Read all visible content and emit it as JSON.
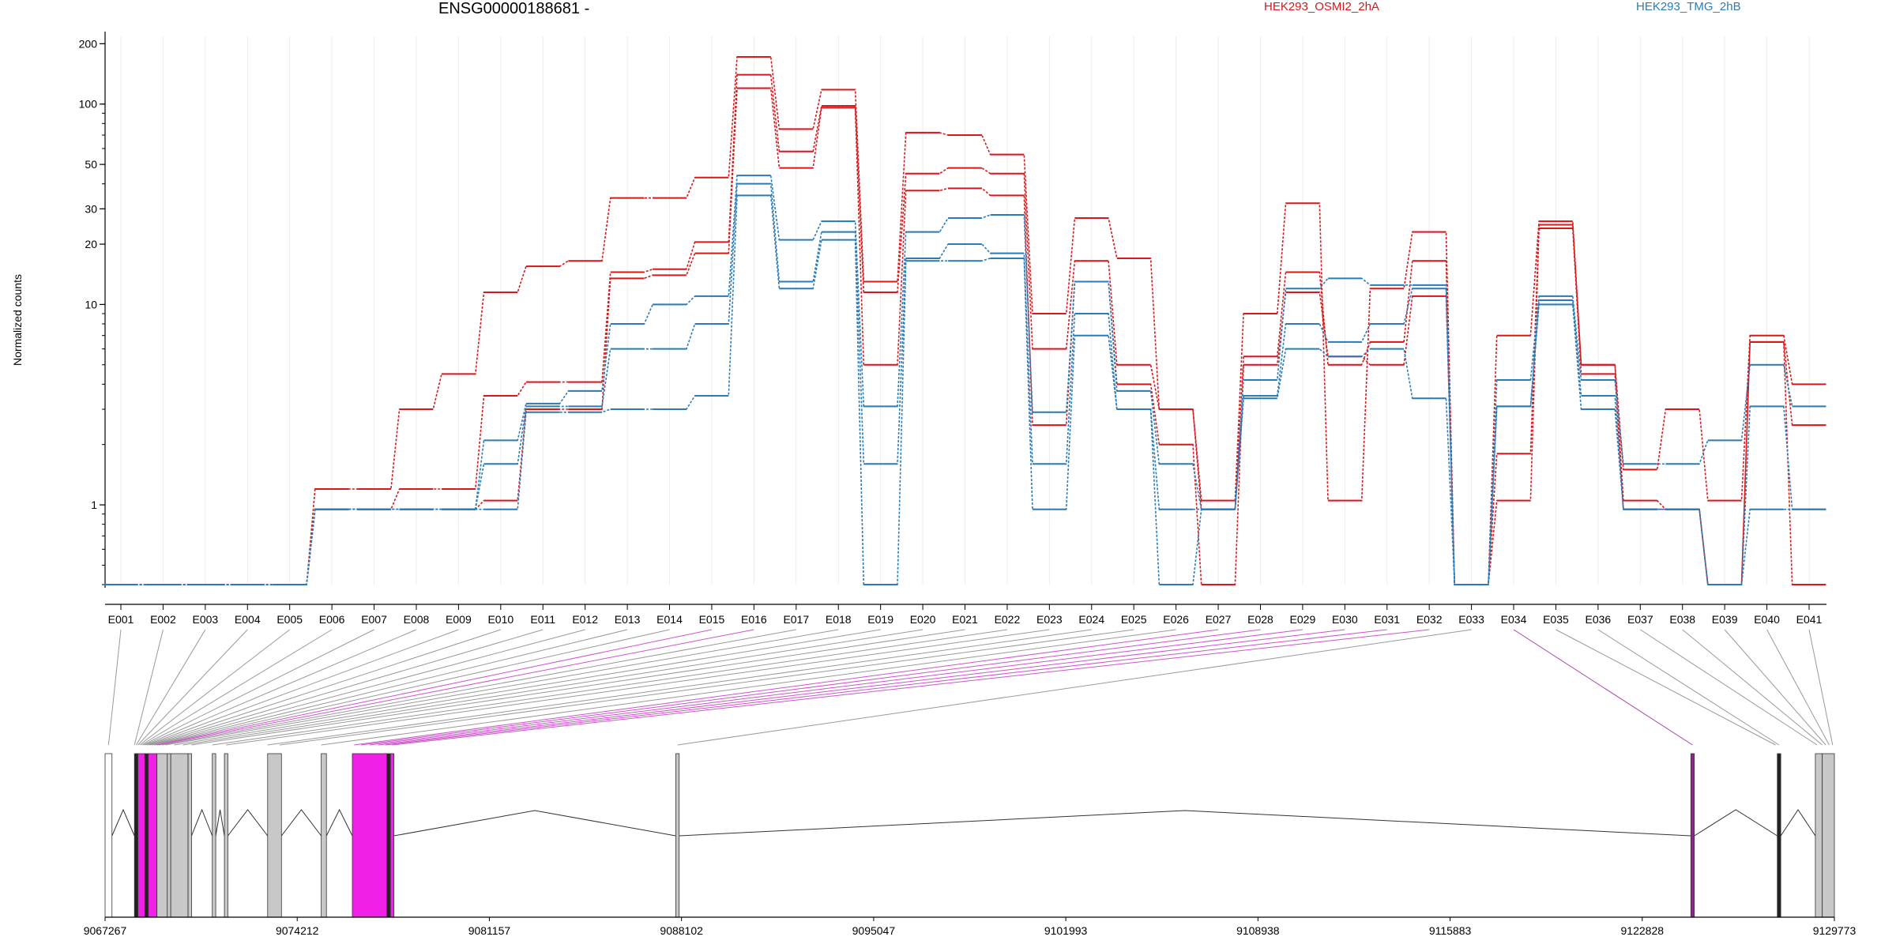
{
  "title": "ENSG00000188681 -",
  "legend": [
    {
      "name": "HEK293_OSMI2_2hA",
      "color": "#d7191c"
    },
    {
      "name": "HEK293_TMG_2hB",
      "color": "#2c7bb6"
    }
  ],
  "chart_data": {
    "type": "line",
    "ylabel": "Normalized counts",
    "yscale": "log",
    "yticks": [
      1,
      10,
      20,
      30,
      50,
      100,
      200
    ],
    "ylim": [
      0.4,
      210
    ],
    "categories": [
      "E001",
      "E002",
      "E003",
      "E004",
      "E005",
      "E006",
      "E007",
      "E008",
      "E009",
      "E010",
      "E011",
      "E012",
      "E013",
      "E014",
      "E015",
      "E016",
      "E017",
      "E018",
      "E019",
      "E020",
      "E021",
      "E022",
      "E023",
      "E024",
      "E025",
      "E026",
      "E027",
      "E028",
      "E029",
      "E030",
      "E031",
      "E032",
      "E033",
      "E034",
      "E035",
      "E036",
      "E037",
      "E038",
      "E039",
      "E040",
      "E041"
    ],
    "series": [
      {
        "group": "red",
        "values": [
          0.4,
          0.4,
          0.4,
          0.4,
          0.4,
          1.2,
          1.2,
          3.0,
          4.5,
          11.5,
          15.5,
          16.5,
          34,
          34,
          43,
          172,
          75,
          118,
          13,
          72,
          70,
          56,
          9,
          27,
          17,
          3,
          1.05,
          9,
          32,
          1.05,
          12,
          23,
          0.4,
          7,
          26,
          5,
          1.5,
          3,
          1.05,
          7,
          4
        ]
      },
      {
        "group": "red",
        "values": [
          0.4,
          0.4,
          0.4,
          0.4,
          0.4,
          0.95,
          0.95,
          1.2,
          1.2,
          3.5,
          4.1,
          4.1,
          14.5,
          15,
          20.5,
          140,
          58,
          98,
          11.5,
          45,
          48,
          45,
          6,
          16.5,
          5,
          3,
          0.95,
          5.5,
          14.5,
          5,
          6.5,
          16.5,
          0.4,
          1.8,
          25,
          5,
          1.05,
          0.95,
          0.4,
          6.5,
          2.5
        ]
      },
      {
        "group": "red",
        "values": [
          0.4,
          0.4,
          0.4,
          0.4,
          0.4,
          0.95,
          0.95,
          0.95,
          0.95,
          1.05,
          3.0,
          3.0,
          13.5,
          14,
          18,
          120,
          48,
          96,
          5,
          37,
          38,
          35,
          2.5,
          13,
          4,
          2,
          0.4,
          5,
          11.5,
          5.5,
          5,
          11,
          0.4,
          1.05,
          24,
          4.5,
          0.95,
          0.95,
          0.4,
          6.5,
          0.4
        ]
      },
      {
        "group": "blue",
        "values": [
          0.4,
          0.4,
          0.4,
          0.4,
          0.4,
          0.95,
          0.95,
          0.95,
          0.95,
          2.1,
          3.2,
          3.7,
          8,
          10,
          11,
          44,
          21,
          26,
          3.1,
          23,
          27,
          28,
          2.9,
          13,
          3.7,
          1.6,
          0.95,
          4.2,
          12,
          13.5,
          12.5,
          12.5,
          0.4,
          4.2,
          11,
          4.2,
          1.6,
          1.6,
          2.1,
          5,
          3.1
        ]
      },
      {
        "group": "blue",
        "values": [
          0.4,
          0.4,
          0.4,
          0.4,
          0.4,
          0.95,
          0.95,
          0.95,
          0.95,
          1.6,
          3.1,
          3.1,
          6,
          6,
          8,
          40,
          13,
          23,
          1.6,
          17,
          20,
          18,
          1.6,
          9,
          3,
          0.95,
          0.95,
          3.5,
          8,
          6.5,
          8,
          12,
          0.4,
          3.1,
          10.5,
          3.5,
          0.95,
          0.95,
          0.4,
          0.95,
          0.95
        ]
      },
      {
        "group": "blue",
        "values": [
          0.4,
          0.4,
          0.4,
          0.4,
          0.4,
          0.95,
          0.95,
          0.95,
          0.95,
          0.95,
          2.9,
          2.9,
          3.0,
          3.0,
          3.5,
          35,
          12,
          21,
          0.4,
          16.5,
          16.5,
          17,
          0.95,
          7,
          3.0,
          0.4,
          0.95,
          3.4,
          6,
          5.5,
          6,
          3.4,
          0.4,
          3.1,
          10,
          3.0,
          0.95,
          0.95,
          0.4,
          3.1,
          0.95
        ]
      }
    ],
    "gene_track": {
      "x_ticks": [
        "9067267",
        "9074212",
        "9081157",
        "9088102",
        "9095047",
        "9101993",
        "9108938",
        "9115883",
        "9122828",
        "9129773"
      ],
      "exon_bins": [
        {
          "start": 0.0,
          "end": 0.004,
          "color": "white",
          "exon": "E001"
        },
        {
          "start": 0.017,
          "end": 0.019,
          "color": "#222222",
          "exon": "E002"
        },
        {
          "start": 0.019,
          "end": 0.023,
          "color": "#f020e6",
          "exon": "E003"
        },
        {
          "start": 0.023,
          "end": 0.025,
          "color": "#222222",
          "exon": "E004"
        },
        {
          "start": 0.025,
          "end": 0.03,
          "color": "#f020e6",
          "exon": "E005"
        },
        {
          "start": 0.03,
          "end": 0.036,
          "color": "#c8c8c8",
          "exon": "E006"
        },
        {
          "start": 0.036,
          "end": 0.038,
          "color": "#c8c8c8",
          "exon": "E007"
        },
        {
          "start": 0.038,
          "end": 0.048,
          "color": "#c8c8c8",
          "exon": "E008"
        },
        {
          "start": 0.048,
          "end": 0.05,
          "color": "#c8c8c8",
          "exon": "E009"
        },
        {
          "start": 0.062,
          "end": 0.064,
          "color": "#c8c8c8",
          "exon": "E010"
        },
        {
          "start": 0.069,
          "end": 0.071,
          "color": "#c8c8c8",
          "exon": "E011"
        },
        {
          "start": 0.094,
          "end": 0.102,
          "color": "#c8c8c8",
          "exon": "E012"
        },
        {
          "start": 0.125,
          "end": 0.128,
          "color": "#c8c8c8",
          "exon": "E013"
        },
        {
          "start": 0.143,
          "end": 0.163,
          "color": "#f020e6",
          "exon": "E014"
        },
        {
          "start": 0.163,
          "end": 0.165,
          "color": "#222222",
          "exon": "E015"
        },
        {
          "start": 0.165,
          "end": 0.167,
          "color": "#f020e6",
          "exon": "E016"
        },
        {
          "start": 0.33,
          "end": 0.332,
          "color": "#c8c8c8",
          "exon": "E017"
        },
        {
          "start": 0.917,
          "end": 0.919,
          "color": "#9a1c9a",
          "exon": "E018"
        },
        {
          "start": 0.967,
          "end": 0.969,
          "color": "#222222",
          "exon": "E019"
        },
        {
          "start": 0.989,
          "end": 0.993,
          "color": "#c8c8c8",
          "exon": "E020"
        },
        {
          "start": 0.993,
          "end": 1.0,
          "color": "#c8c8c8",
          "exon": "E021"
        }
      ],
      "connectors": [
        {
          "exon": "E001",
          "pos": 0.002,
          "color": "#999999"
        },
        {
          "exon": "E002",
          "pos": 0.017,
          "color": "#999999"
        },
        {
          "exon": "E003",
          "pos": 0.018,
          "color": "#999999"
        },
        {
          "exon": "E004",
          "pos": 0.019,
          "color": "#999999"
        },
        {
          "exon": "E005",
          "pos": 0.02,
          "color": "#999999"
        },
        {
          "exon": "E006",
          "pos": 0.021,
          "color": "#999999"
        },
        {
          "exon": "E007",
          "pos": 0.022,
          "color": "#999999"
        },
        {
          "exon": "E008",
          "pos": 0.023,
          "color": "#999999"
        },
        {
          "exon": "E009",
          "pos": 0.024,
          "color": "#999999"
        },
        {
          "exon": "E010",
          "pos": 0.025,
          "color": "#999999"
        },
        {
          "exon": "E011",
          "pos": 0.026,
          "color": "#999999"
        },
        {
          "exon": "E012",
          "pos": 0.027,
          "color": "#999999"
        },
        {
          "exon": "E013",
          "pos": 0.028,
          "color": "#999999"
        },
        {
          "exon": "E014",
          "pos": 0.029,
          "color": "#999999"
        },
        {
          "exon": "E015",
          "pos": 0.03,
          "color": "#cc55cc"
        },
        {
          "exon": "E016",
          "pos": 0.031,
          "color": "#cc55cc"
        },
        {
          "exon": "E017",
          "pos": 0.033,
          "color": "#999999"
        },
        {
          "exon": "E018",
          "pos": 0.035,
          "color": "#999999"
        },
        {
          "exon": "E019",
          "pos": 0.04,
          "color": "#999999"
        },
        {
          "exon": "E020",
          "pos": 0.045,
          "color": "#999999"
        },
        {
          "exon": "E021",
          "pos": 0.05,
          "color": "#999999"
        },
        {
          "exon": "E022",
          "pos": 0.062,
          "color": "#999999"
        },
        {
          "exon": "E023",
          "pos": 0.07,
          "color": "#999999"
        },
        {
          "exon": "E024",
          "pos": 0.094,
          "color": "#999999"
        },
        {
          "exon": "E025",
          "pos": 0.101,
          "color": "#999999"
        },
        {
          "exon": "E026",
          "pos": 0.125,
          "color": "#999999"
        },
        {
          "exon": "E027",
          "pos": 0.144,
          "color": "#cc55cc"
        },
        {
          "exon": "E028",
          "pos": 0.148,
          "color": "#cc55cc"
        },
        {
          "exon": "E029",
          "pos": 0.153,
          "color": "#cc55cc"
        },
        {
          "exon": "E030",
          "pos": 0.158,
          "color": "#cc55cc"
        },
        {
          "exon": "E031",
          "pos": 0.162,
          "color": "#cc55cc"
        },
        {
          "exon": "E032",
          "pos": 0.166,
          "color": "#cc55cc"
        },
        {
          "exon": "E033",
          "pos": 0.331,
          "color": "#999999"
        },
        {
          "exon": "E034",
          "pos": 0.918,
          "color": "#aa44aa"
        },
        {
          "exon": "E035",
          "pos": 0.966,
          "color": "#999999"
        },
        {
          "exon": "E036",
          "pos": 0.968,
          "color": "#999999"
        },
        {
          "exon": "E037",
          "pos": 0.99,
          "color": "#999999"
        },
        {
          "exon": "E038",
          "pos": 0.993,
          "color": "#999999"
        },
        {
          "exon": "E039",
          "pos": 0.995,
          "color": "#999999"
        },
        {
          "exon": "E040",
          "pos": 0.997,
          "color": "#999999"
        },
        {
          "exon": "E041",
          "pos": 0.999,
          "color": "#999999"
        }
      ],
      "introns": [
        [
          0.004,
          0.017
        ],
        [
          0.05,
          0.062
        ],
        [
          0.064,
          0.069
        ],
        [
          0.071,
          0.094
        ],
        [
          0.102,
          0.125
        ],
        [
          0.128,
          0.143
        ],
        [
          0.167,
          0.33
        ],
        [
          0.332,
          0.917
        ],
        [
          0.919,
          0.967
        ],
        [
          0.969,
          0.989
        ]
      ]
    }
  }
}
